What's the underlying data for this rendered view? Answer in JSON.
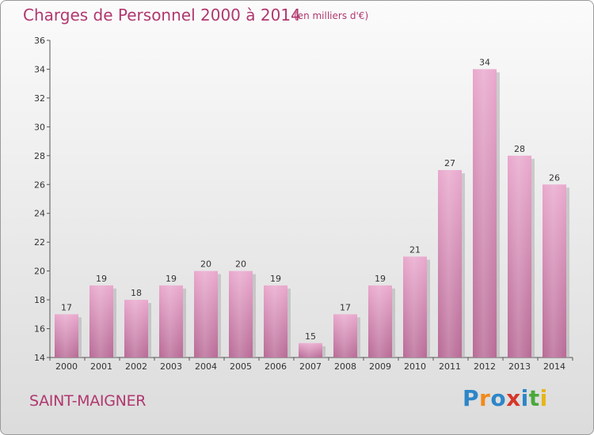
{
  "header": {
    "title": "Charges de Personnel 2000 à 2014",
    "subtitle": "(en milliers d'€)"
  },
  "footer": {
    "commune": "SAINT-MAIGNER",
    "logo": [
      "P",
      "r",
      "o",
      "x",
      "i",
      "t",
      "i"
    ],
    "logo_colors": [
      "#2d86c8",
      "#f08a1c",
      "#2d86c8",
      "#d6362a",
      "#2d86c8",
      "#4aa83a",
      "#e7b416"
    ]
  },
  "colors": {
    "bar_top": "#e9a8cd",
    "bar_bottom": "#b86a96",
    "bar_shadow": "#b3b3b3",
    "title": "#b0386f"
  },
  "chart_data": {
    "type": "bar",
    "categories": [
      "2000",
      "2001",
      "2002",
      "2003",
      "2004",
      "2005",
      "2006",
      "2007",
      "2008",
      "2009",
      "2010",
      "2011",
      "2012",
      "2013",
      "2014"
    ],
    "values": [
      17,
      19,
      18,
      19,
      20,
      20,
      19,
      15,
      17,
      19,
      21,
      27,
      34,
      28,
      26
    ],
    "title": "Charges de Personnel 2000 à 2014",
    "xlabel": "",
    "ylabel": "",
    "ylim": [
      14,
      36
    ],
    "yticks": [
      14,
      16,
      18,
      20,
      22,
      24,
      26,
      28,
      30,
      32,
      34,
      36
    ],
    "grid": false,
    "data_labels": true
  }
}
